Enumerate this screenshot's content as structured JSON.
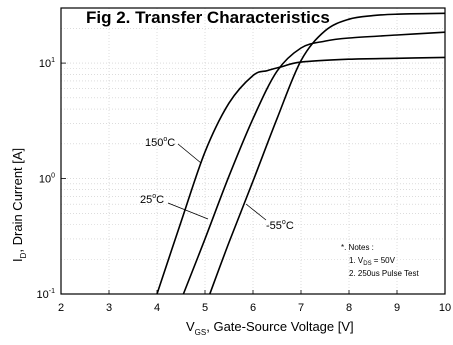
{
  "chart_data": {
    "type": "line",
    "title": "Fig 2. Transfer Characteristics",
    "xlabel": "V",
    "xlabel_sub": "GS",
    "xlabel_rest": ", Gate-Source Voltage [V]",
    "ylabel": "I",
    "ylabel_sub": "D",
    "ylabel_rest": ", Drain Current [A]",
    "xlim": [
      2,
      10
    ],
    "ylim": [
      0.1,
      30
    ],
    "yscale": "log",
    "grid": true,
    "x_ticks": [
      "2",
      "3",
      "4",
      "5",
      "6",
      "7",
      "8",
      "9",
      "10"
    ],
    "y_ticks": [
      {
        "base": "10",
        "exp": "-1",
        "value": 0.1
      },
      {
        "base": "10",
        "exp": "0",
        "value": 1
      },
      {
        "base": "10",
        "exp": "1",
        "value": 10
      }
    ],
    "series": [
      {
        "name": "150°C",
        "label_base": "150",
        "label_sup": "o",
        "label_unit": "C",
        "x": [
          4.0,
          4.5,
          5.0,
          5.5,
          6.0,
          6.3,
          6.6,
          7.0,
          8.0,
          9.0,
          10.0
        ],
        "y": [
          0.1,
          0.42,
          1.7,
          4.5,
          7.8,
          8.6,
          9.3,
          10.2,
          10.8,
          11.0,
          11.2
        ]
      },
      {
        "name": "25°C",
        "label_base": "25",
        "label_sup": "o",
        "label_unit": "C",
        "x": [
          4.55,
          5.0,
          5.5,
          6.0,
          6.5,
          7.0,
          7.5,
          8.0,
          9.0,
          10.0
        ],
        "y": [
          0.1,
          0.3,
          1.05,
          3.3,
          8.5,
          13.5,
          15.5,
          16.5,
          17.5,
          18.5
        ]
      },
      {
        "name": "-55°C",
        "label_base": "-55",
        "label_sup": "o",
        "label_unit": "C",
        "x": [
          5.1,
          5.5,
          6.0,
          6.5,
          7.0,
          7.5,
          8.0,
          8.5,
          9.0,
          10.0
        ],
        "y": [
          0.1,
          0.28,
          0.95,
          3.3,
          10.5,
          19.0,
          24.0,
          25.8,
          26.5,
          27.0
        ]
      }
    ],
    "notes": {
      "heading": "*. Notes :",
      "line1_num": "1. V",
      "line1_sub": "DS",
      "line1_rest": " = 50V",
      "line2": "2. 250us Pulse Test"
    }
  }
}
